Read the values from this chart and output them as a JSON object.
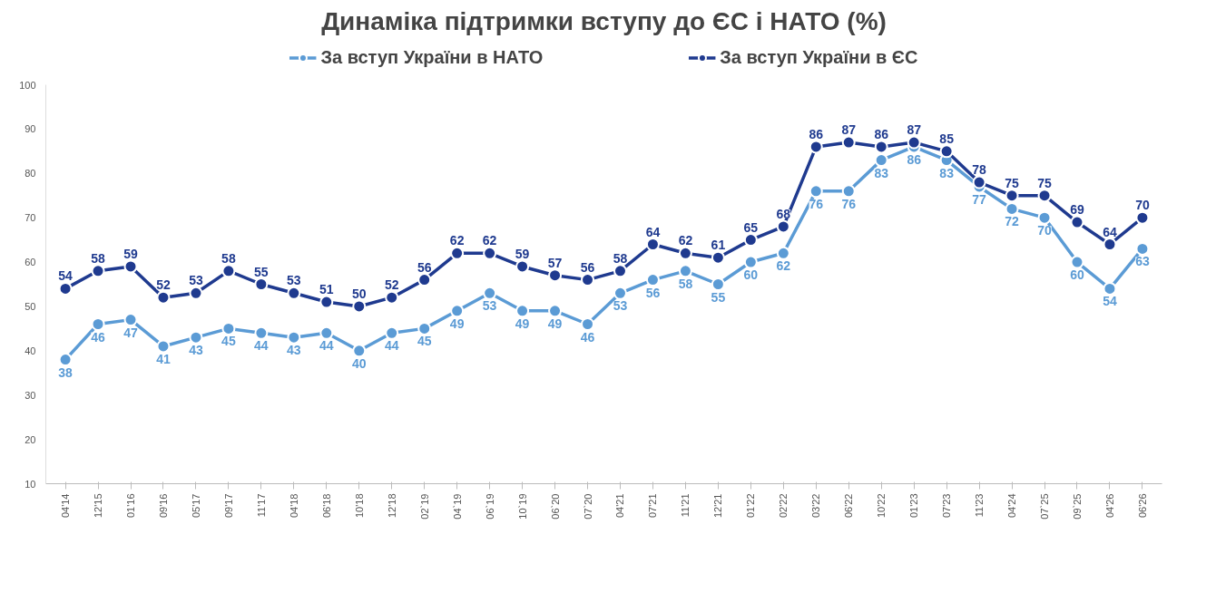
{
  "chart_data": {
    "type": "line",
    "title": "Динаміка підтримки вступу до ЄС і НАТО (%)",
    "categories": [
      "04'14",
      "12'15",
      "01'16",
      "09'16",
      "05'17",
      "09'17",
      "11'17",
      "04'18",
      "06'18",
      "10'18",
      "12'18",
      "02`19",
      "04`19",
      "06`19",
      "10`19",
      "06`20",
      "07`20",
      "04'21",
      "07'21",
      "11'21",
      "12'21",
      "01'22",
      "02'22",
      "03'22",
      "06'22",
      "10'22",
      "01'23",
      "07'23",
      "11'23",
      "04'24",
      "07`25",
      "09`25",
      "04'26",
      "06'26"
    ],
    "series": [
      {
        "name": "За вступ України в НАТО",
        "color": "#5b9bd5",
        "values": [
          38,
          46,
          47,
          41,
          43,
          45,
          44,
          43,
          44,
          40,
          44,
          45,
          49,
          53,
          49,
          49,
          46,
          53,
          56,
          58,
          55,
          60,
          62,
          76,
          76,
          83,
          86,
          83,
          77,
          72,
          70,
          60,
          54,
          63
        ]
      },
      {
        "name": "За вступ України в ЄС",
        "color": "#1f3a8f",
        "values": [
          54,
          58,
          59,
          52,
          53,
          58,
          55,
          53,
          51,
          50,
          52,
          56,
          62,
          62,
          59,
          57,
          56,
          58,
          64,
          62,
          61,
          65,
          68,
          86,
          87,
          86,
          87,
          85,
          78,
          75,
          75,
          69,
          64,
          70
        ]
      }
    ],
    "ylim": [
      10,
      100
    ],
    "yticks": [
      10,
      20,
      30,
      40,
      50,
      60,
      70,
      80,
      90,
      100
    ],
    "grid": false,
    "legend": "top",
    "marker": "circle",
    "line_style": "solid",
    "data_labels": true
  }
}
